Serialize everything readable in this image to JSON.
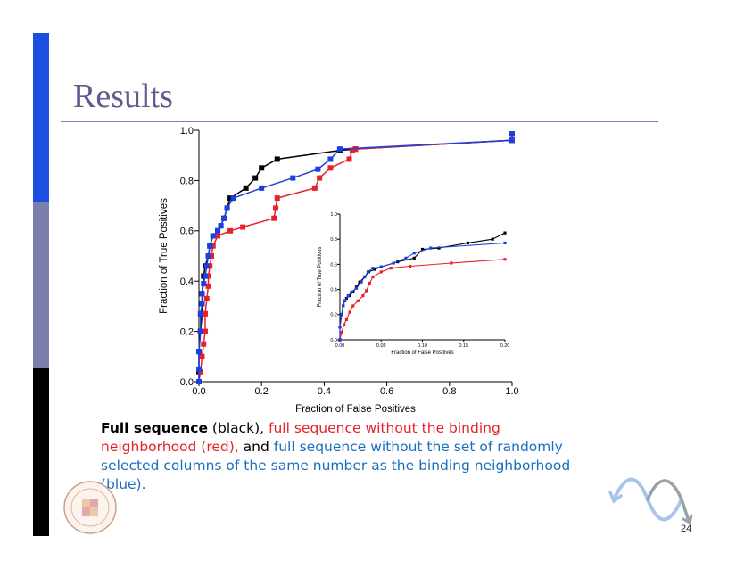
{
  "slide": {
    "title": "Results",
    "page_number": "24",
    "caption": {
      "black_bold": "Full sequence",
      "black_plain": " (black), ",
      "red": "full sequence without the binding neighborhood (red),",
      "and": " and ",
      "blue": " full sequence without the set of randomly selected columns of the same number as the binding neighborhood (blue)."
    },
    "colors": {
      "accent_blue": "#1c4fe0",
      "accent_gray": "#7b7fad",
      "title": "#5c5c8e",
      "red_text": "#e8202a",
      "blue_text": "#1a6fc0"
    },
    "logo": "University of Maryland seal",
    "decoration": "sine-wave-arrow-icon"
  },
  "chart_data": [
    {
      "type": "line",
      "xlabel": "Fraction of False Positives",
      "ylabel": "Fraction of True Positives",
      "xlim": [
        0,
        1.0
      ],
      "ylim": [
        0,
        1.0
      ],
      "xticks": [
        "0.0",
        "0.2",
        "0.4",
        "0.6",
        "0.8",
        "1.0"
      ],
      "yticks": [
        "0.0",
        "0.2",
        "0.4",
        "0.6",
        "0.8",
        "1.0"
      ],
      "grid": false,
      "legend": "none",
      "series": [
        {
          "color": "#000000",
          "points": [
            [
              0,
              0
            ],
            [
              0,
              0.04
            ],
            [
              0,
              0.12
            ],
            [
              0.005,
              0.2
            ],
            [
              0.01,
              0.27
            ],
            [
              0.01,
              0.35
            ],
            [
              0.015,
              0.42
            ],
            [
              0.02,
              0.46
            ],
            [
              0.03,
              0.5
            ],
            [
              0.035,
              0.54
            ],
            [
              0.045,
              0.58
            ],
            [
              0.06,
              0.6
            ],
            [
              0.07,
              0.62
            ],
            [
              0.08,
              0.65
            ],
            [
              0.09,
              0.69
            ],
            [
              0.1,
              0.73
            ],
            [
              0.15,
              0.77
            ],
            [
              0.18,
              0.81
            ],
            [
              0.2,
              0.85
            ],
            [
              0.25,
              0.885
            ],
            [
              0.45,
              0.92
            ],
            [
              0.5,
              0.925
            ],
            [
              1.0,
              0.96
            ],
            [
              1.0,
              0.985
            ]
          ]
        },
        {
          "color": "#e8202a",
          "points": [
            [
              0,
              0
            ],
            [
              0.005,
              0.04
            ],
            [
              0.01,
              0.1
            ],
            [
              0.015,
              0.15
            ],
            [
              0.02,
              0.2
            ],
            [
              0.02,
              0.27
            ],
            [
              0.025,
              0.33
            ],
            [
              0.03,
              0.38
            ],
            [
              0.03,
              0.42
            ],
            [
              0.035,
              0.46
            ],
            [
              0.04,
              0.5
            ],
            [
              0.045,
              0.54
            ],
            [
              0.06,
              0.58
            ],
            [
              0.1,
              0.6
            ],
            [
              0.14,
              0.615
            ],
            [
              0.24,
              0.65
            ],
            [
              0.245,
              0.69
            ],
            [
              0.25,
              0.73
            ],
            [
              0.37,
              0.77
            ],
            [
              0.385,
              0.81
            ],
            [
              0.42,
              0.85
            ],
            [
              0.48,
              0.885
            ],
            [
              0.49,
              0.92
            ],
            [
              0.5,
              0.925
            ],
            [
              1.0,
              0.96
            ],
            [
              1.0,
              0.985
            ]
          ]
        },
        {
          "color": "#1c3fe0",
          "points": [
            [
              0,
              0
            ],
            [
              0,
              0.05
            ],
            [
              0,
              0.12
            ],
            [
              0.005,
              0.2
            ],
            [
              0.005,
              0.27
            ],
            [
              0.01,
              0.31
            ],
            [
              0.01,
              0.35
            ],
            [
              0.015,
              0.39
            ],
            [
              0.02,
              0.42
            ],
            [
              0.025,
              0.46
            ],
            [
              0.03,
              0.5
            ],
            [
              0.035,
              0.54
            ],
            [
              0.045,
              0.58
            ],
            [
              0.06,
              0.6
            ],
            [
              0.07,
              0.62
            ],
            [
              0.08,
              0.65
            ],
            [
              0.09,
              0.69
            ],
            [
              0.11,
              0.73
            ],
            [
              0.2,
              0.77
            ],
            [
              0.3,
              0.81
            ],
            [
              0.38,
              0.845
            ],
            [
              0.42,
              0.885
            ],
            [
              0.45,
              0.925
            ],
            [
              1.0,
              0.96
            ],
            [
              1.0,
              0.985
            ]
          ]
        }
      ]
    },
    {
      "type": "line",
      "xlabel": "Fraction of False Positives",
      "ylabel": "Fraction of True Positives",
      "xlim": [
        0,
        0.2
      ],
      "ylim": [
        0,
        1.0
      ],
      "xticks": [
        "0.00",
        "0.05",
        "0.10",
        "0.15",
        "0.20"
      ],
      "yticks": [
        "0.0",
        "0.2",
        "0.4",
        "0.6",
        "0.8",
        "1.0"
      ],
      "grid": false,
      "legend": "none",
      "series": [
        {
          "color": "#000000",
          "points": [
            [
              0,
              0
            ],
            [
              0,
              0.1
            ],
            [
              0.002,
              0.2
            ],
            [
              0.004,
              0.27
            ],
            [
              0.006,
              0.31
            ],
            [
              0.008,
              0.33
            ],
            [
              0.012,
              0.35
            ],
            [
              0.016,
              0.38
            ],
            [
              0.02,
              0.42
            ],
            [
              0.024,
              0.46
            ],
            [
              0.03,
              0.5
            ],
            [
              0.035,
              0.54
            ],
            [
              0.042,
              0.56
            ],
            [
              0.05,
              0.58
            ],
            [
              0.07,
              0.62
            ],
            [
              0.09,
              0.65
            ],
            [
              0.1,
              0.72
            ],
            [
              0.12,
              0.73
            ],
            [
              0.155,
              0.77
            ],
            [
              0.185,
              0.8
            ],
            [
              0.2,
              0.85
            ]
          ]
        },
        {
          "color": "#e8202a",
          "points": [
            [
              0,
              0
            ],
            [
              0.002,
              0.06
            ],
            [
              0.005,
              0.12
            ],
            [
              0.008,
              0.16
            ],
            [
              0.012,
              0.22
            ],
            [
              0.016,
              0.27
            ],
            [
              0.022,
              0.31
            ],
            [
              0.028,
              0.35
            ],
            [
              0.032,
              0.39
            ],
            [
              0.036,
              0.45
            ],
            [
              0.04,
              0.5
            ],
            [
              0.05,
              0.54
            ],
            [
              0.062,
              0.57
            ],
            [
              0.085,
              0.585
            ],
            [
              0.135,
              0.61
            ],
            [
              0.2,
              0.64
            ]
          ]
        },
        {
          "color": "#1c3fe0",
          "points": [
            [
              0,
              0
            ],
            [
              0,
              0.1
            ],
            [
              0.002,
              0.2
            ],
            [
              0.004,
              0.27
            ],
            [
              0.006,
              0.31
            ],
            [
              0.01,
              0.35
            ],
            [
              0.014,
              0.38
            ],
            [
              0.02,
              0.41
            ],
            [
              0.026,
              0.46
            ],
            [
              0.03,
              0.5
            ],
            [
              0.034,
              0.54
            ],
            [
              0.04,
              0.57
            ],
            [
              0.05,
              0.58
            ],
            [
              0.065,
              0.61
            ],
            [
              0.08,
              0.65
            ],
            [
              0.09,
              0.69
            ],
            [
              0.11,
              0.73
            ],
            [
              0.2,
              0.77
            ]
          ]
        }
      ]
    }
  ]
}
